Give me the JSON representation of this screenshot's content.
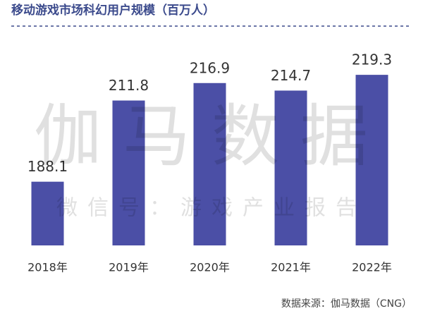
{
  "chart_data": {
    "type": "bar",
    "title": "移动游戏市场科幻用户规模（百万人）",
    "watermark": "伽马数据",
    "watermark_subtitle": "微信号：游戏产业报告",
    "source": "数据来源：伽马数据（CNG）",
    "categories": [
      "2018年",
      "2019年",
      "2020年",
      "2021年",
      "2022年"
    ],
    "values": [
      188.1,
      211.8,
      216.9,
      214.7,
      219.3
    ],
    "color": "#4b4fa6",
    "ylim": [
      169.5,
      229
    ]
  }
}
